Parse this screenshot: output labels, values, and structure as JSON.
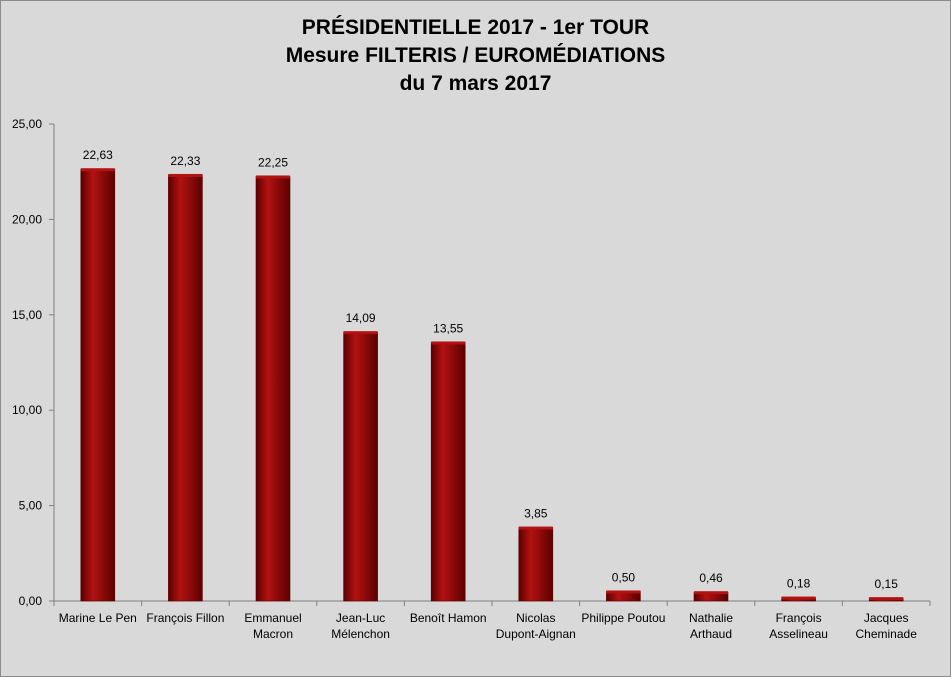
{
  "chart_data": {
    "type": "bar",
    "title": [
      "PRÉSIDENTIELLE 2017 - 1er TOUR",
      "Mesure FILTERIS / EUROMÉDIATIONS",
      "du 7 mars 2017"
    ],
    "categories": [
      [
        "Marine Le Pen"
      ],
      [
        "François Fillon"
      ],
      [
        "Emmanuel",
        "Macron"
      ],
      [
        "Jean-Luc",
        "Mélenchon"
      ],
      [
        "Benoît Hamon"
      ],
      [
        "Nicolas",
        "Dupont-Aignan"
      ],
      [
        "Philippe Poutou"
      ],
      [
        "Nathalie",
        "Arthaud"
      ],
      [
        "François",
        "Asselineau"
      ],
      [
        "Jacques",
        "Cheminade"
      ]
    ],
    "values": [
      22.63,
      22.33,
      22.25,
      14.09,
      13.55,
      3.85,
      0.5,
      0.46,
      0.18,
      0.15
    ],
    "value_labels": [
      "22,63",
      "22,33",
      "22,25",
      "14,09",
      "13,55",
      "3,85",
      "0,50",
      "0,46",
      "0,18",
      "0,15"
    ],
    "y_ticks": [
      0,
      5,
      10,
      15,
      20,
      25
    ],
    "y_tick_labels": [
      "0,00",
      "5,00",
      "10,00",
      "15,00",
      "20,00",
      "25,00"
    ],
    "ylim": [
      0,
      25
    ],
    "xlabel": "",
    "ylabel": "",
    "grid": false,
    "legend": "none",
    "colors": {
      "bar": "#8b0000",
      "bar_highlight": "#b31212",
      "bar_shadow": "#5c0000",
      "background": "#d9d9d9",
      "axis": "#7f7f7f"
    }
  }
}
